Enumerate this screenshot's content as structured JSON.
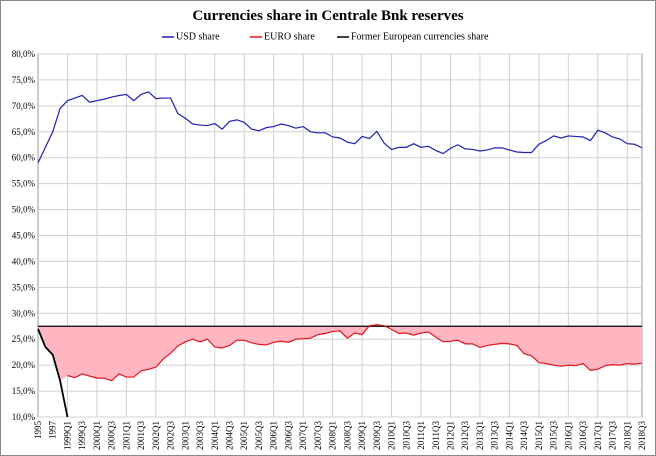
{
  "chart_data": {
    "type": "line",
    "title": "Currencies share in Centrale Bnk reserves",
    "categories": [
      "1995",
      null,
      "1997",
      null,
      "1999Q1",
      null,
      "1999Q3",
      null,
      "2000Q1",
      null,
      "2000Q3",
      null,
      "2001Q1",
      null,
      "2001Q3",
      null,
      "2002Q1",
      null,
      "2002Q3",
      null,
      "2003Q1",
      null,
      "2003Q3",
      null,
      "2004Q1",
      null,
      "2004Q3",
      null,
      "2005Q1",
      null,
      "2005Q3",
      null,
      "2006Q1",
      null,
      "2006Q3",
      null,
      "2007Q1",
      null,
      "2007Q3",
      null,
      "2008Q1",
      null,
      "2008Q3",
      null,
      "2009Q1",
      null,
      "2009Q3",
      null,
      "2010Q1",
      null,
      "2010Q3",
      null,
      "2011Q1",
      null,
      "2011Q3",
      null,
      "2012Q1",
      null,
      "2012Q3",
      null,
      "2013Q1",
      null,
      "2013Q3",
      null,
      "2014Q1",
      null,
      "2014Q3",
      null,
      "2015Q1",
      null,
      "2015Q3",
      null,
      "2016Q1",
      null,
      "2016Q3",
      null,
      "2017Q1",
      null,
      "2017Q3",
      null,
      "2018Q1",
      null,
      "2018Q3"
    ],
    "series": [
      {
        "name": "USD share",
        "color": "#1f1fb4",
        "values": [
          59.0,
          62.0,
          65.0,
          69.5,
          71.0,
          71.5,
          72.0,
          70.7,
          71.0,
          71.3,
          71.7,
          72.0,
          72.2,
          71.0,
          72.2,
          72.7,
          71.4,
          71.5,
          71.5,
          68.5,
          67.6,
          66.5,
          66.3,
          66.2,
          66.6,
          65.5,
          67.0,
          67.3,
          66.8,
          65.5,
          65.2,
          65.8,
          66.0,
          66.5,
          66.2,
          65.7,
          66.0,
          65.0,
          64.8,
          64.8,
          64.0,
          63.8,
          63.0,
          62.7,
          64.1,
          63.7,
          65.1,
          62.8,
          61.6,
          62.0,
          62.0,
          62.7,
          62.0,
          62.2,
          61.4,
          60.8,
          61.8,
          62.5,
          61.7,
          61.6,
          61.3,
          61.5,
          61.9,
          61.9,
          61.5,
          61.1,
          61.0,
          61.0,
          62.6,
          63.3,
          64.2,
          63.8,
          64.2,
          64.1,
          64.0,
          63.3,
          65.3,
          64.8,
          64.0,
          63.6,
          62.7,
          62.6,
          61.9
        ]
      },
      {
        "name": "EURO share",
        "color": "#e0141e",
        "values": [
          null,
          null,
          null,
          null,
          18.0,
          17.6,
          18.3,
          17.9,
          17.5,
          17.5,
          17.0,
          18.3,
          17.7,
          17.7,
          18.9,
          19.2,
          19.6,
          21.2,
          22.3,
          23.7,
          24.5,
          25.0,
          24.5,
          25.0,
          23.5,
          23.3,
          23.8,
          24.8,
          24.8,
          24.3,
          24.0,
          23.9,
          24.4,
          24.6,
          24.4,
          25.0,
          25.1,
          25.2,
          25.9,
          26.1,
          26.5,
          26.6,
          25.2,
          26.2,
          25.9,
          27.6,
          27.8,
          27.6,
          26.9,
          26.1,
          26.2,
          25.8,
          26.2,
          26.4,
          25.4,
          24.5,
          24.6,
          24.8,
          24.1,
          24.1,
          23.4,
          23.8,
          24.0,
          24.2,
          24.1,
          23.8,
          22.2,
          21.8,
          20.5,
          20.3,
          20.0,
          19.8,
          20.0,
          19.9,
          20.3,
          19.0,
          19.2,
          19.9,
          20.1,
          20.0,
          20.3,
          20.2,
          20.4
        ]
      },
      {
        "name": "Former European currencies share",
        "color": "#000000",
        "values": [
          27.0,
          23.5,
          22.0,
          17.0,
          10.0,
          null,
          null,
          null,
          null,
          null,
          null,
          null,
          null,
          null,
          null,
          null,
          null,
          null,
          null,
          null,
          null,
          null,
          null,
          null,
          null,
          null,
          null,
          null,
          null,
          null,
          null,
          null,
          null,
          null,
          null,
          null,
          null,
          null,
          null,
          null,
          null,
          null,
          null,
          null,
          null,
          null,
          null,
          null,
          null,
          null,
          null,
          null,
          null,
          null,
          null,
          null,
          null,
          null,
          null,
          null,
          null,
          null,
          null,
          null,
          null,
          null,
          null,
          null,
          null,
          null,
          null,
          null,
          null,
          null,
          null,
          null,
          null,
          null,
          null,
          null,
          null,
          null,
          null
        ]
      }
    ],
    "hline": 27.5,
    "fill_color": "#ffb6c1",
    "ylim": [
      10,
      80
    ],
    "yticks": [
      {
        "value": 10,
        "label": "10,0%"
      },
      {
        "value": 15,
        "label": "15,0%"
      },
      {
        "value": 20,
        "label": "20,0%"
      },
      {
        "value": 25,
        "label": "25,0%"
      },
      {
        "value": 30,
        "label": "30,0%"
      },
      {
        "value": 35,
        "label": "35,0%"
      },
      {
        "value": 40,
        "label": "40,0%"
      },
      {
        "value": 45,
        "label": "45,0%"
      },
      {
        "value": 50,
        "label": "50,0%"
      },
      {
        "value": 55,
        "label": "55,0%"
      },
      {
        "value": 60,
        "label": "60,0%"
      },
      {
        "value": 65,
        "label": "65,0%"
      },
      {
        "value": 70,
        "label": "70,0%"
      },
      {
        "value": 75,
        "label": "75,0%"
      },
      {
        "value": 80,
        "label": "80,0%"
      }
    ],
    "grid": true,
    "legend": "top"
  }
}
